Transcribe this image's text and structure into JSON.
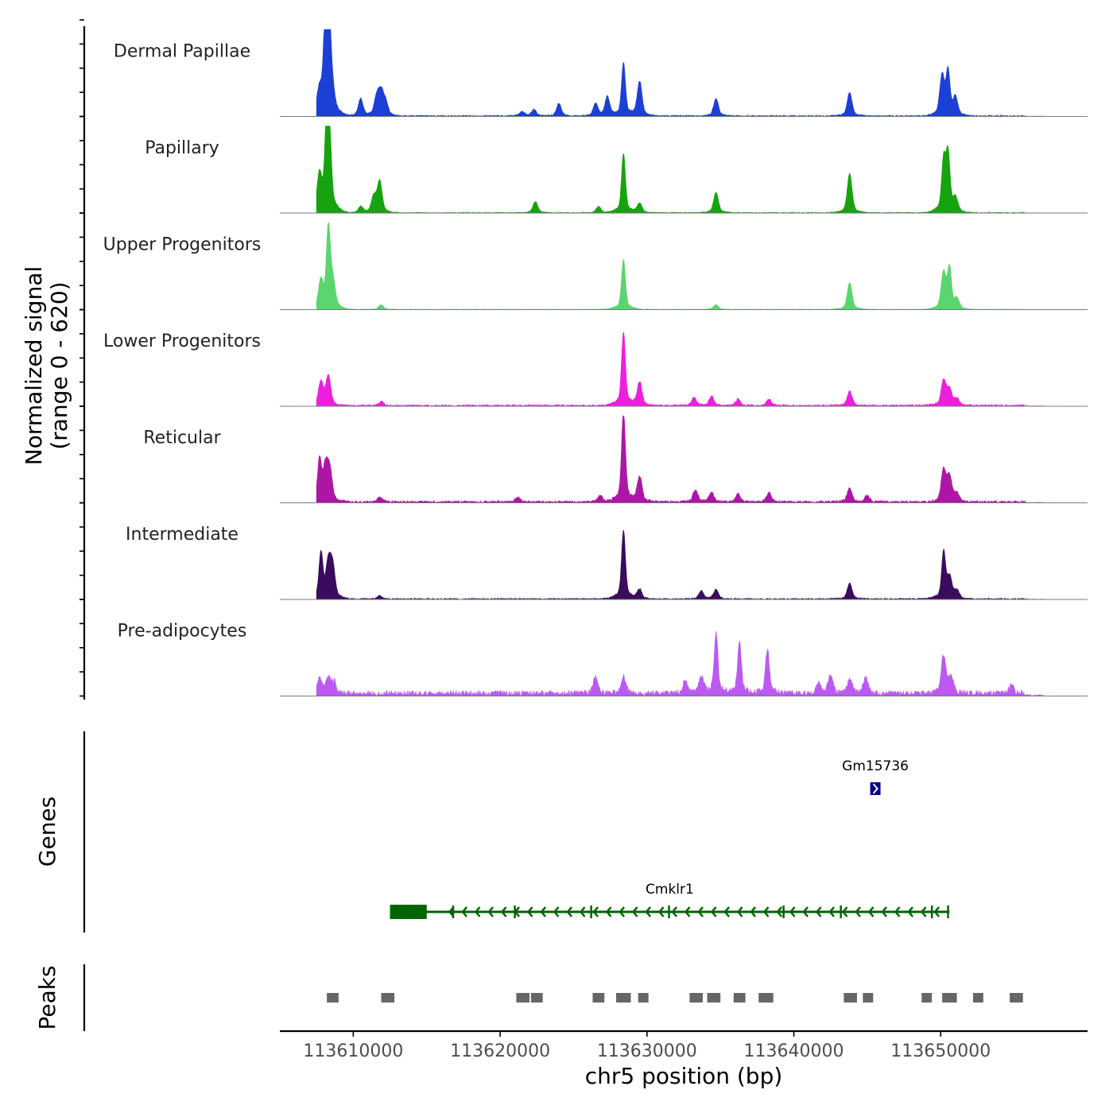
{
  "chart_data": {
    "type": "area",
    "title": "",
    "chromosome": "chr5",
    "xlabel": "chr5 position (bp)",
    "ylabel": "Normalized signal",
    "ylabel_range": "(range 0 - 620)",
    "ylim": [
      0,
      620
    ],
    "xlim": [
      113605000,
      113660000
    ],
    "x_ticks": [
      113610000,
      113620000,
      113630000,
      113640000,
      113650000
    ],
    "x_tick_labels": [
      "113610000",
      "113620000",
      "113630000",
      "113640000",
      "113650000"
    ],
    "tracks": [
      {
        "name": "Dermal Papillae",
        "color": "#1c3fd6",
        "peaks": [
          [
            113607700,
            130
          ],
          [
            113608100,
            550
          ],
          [
            113608300,
            600
          ],
          [
            113608500,
            200
          ],
          [
            113610500,
            110
          ],
          [
            113611600,
            120
          ],
          [
            113611900,
            140
          ],
          [
            113612200,
            80
          ],
          [
            113621500,
            30
          ],
          [
            113622300,
            40
          ],
          [
            113624000,
            80
          ],
          [
            113626500,
            80
          ],
          [
            113627300,
            120
          ],
          [
            113628400,
            340
          ],
          [
            113629500,
            220
          ],
          [
            113634700,
            110
          ],
          [
            113643800,
            150
          ],
          [
            113650100,
            250
          ],
          [
            113650500,
            280
          ],
          [
            113651000,
            110
          ]
        ],
        "baseline": 6
      },
      {
        "name": "Papillary",
        "color": "#17a30f",
        "peaks": [
          [
            113607700,
            220
          ],
          [
            113608200,
            620
          ],
          [
            113608400,
            380
          ],
          [
            113610500,
            40
          ],
          [
            113611400,
            100
          ],
          [
            113611800,
            200
          ],
          [
            113622400,
            70
          ],
          [
            113626700,
            40
          ],
          [
            113628400,
            380
          ],
          [
            113629500,
            60
          ],
          [
            113634700,
            130
          ],
          [
            113643800,
            250
          ],
          [
            113650200,
            330
          ],
          [
            113650500,
            370
          ],
          [
            113651000,
            80
          ]
        ],
        "baseline": 4
      },
      {
        "name": "Upper Progenitors",
        "color": "#5ad670",
        "peaks": [
          [
            113607800,
            170
          ],
          [
            113608300,
            510
          ],
          [
            113608600,
            170
          ],
          [
            113611900,
            30
          ],
          [
            113628400,
            320
          ],
          [
            113634700,
            30
          ],
          [
            113643800,
            170
          ],
          [
            113650200,
            230
          ],
          [
            113650600,
            260
          ],
          [
            113651100,
            60
          ]
        ],
        "baseline": 3
      },
      {
        "name": "Lower Progenitors",
        "color": "#ee1ee0",
        "peaks": [
          [
            113607800,
            150
          ],
          [
            113608300,
            190
          ],
          [
            113611900,
            25
          ],
          [
            113628400,
            470
          ],
          [
            113629500,
            150
          ],
          [
            113633200,
            50
          ],
          [
            113634400,
            60
          ],
          [
            113636200,
            40
          ],
          [
            113638300,
            40
          ],
          [
            113643800,
            90
          ],
          [
            113650200,
            160
          ],
          [
            113650600,
            100
          ],
          [
            113651100,
            40
          ]
        ],
        "baseline": 8
      },
      {
        "name": "Reticular",
        "color": "#ad16a4",
        "peaks": [
          [
            113607700,
            260
          ],
          [
            113608100,
            210
          ],
          [
            113608400,
            190
          ],
          [
            113611800,
            30
          ],
          [
            113621200,
            30
          ],
          [
            113626800,
            40
          ],
          [
            113628400,
            580
          ],
          [
            113629500,
            160
          ],
          [
            113633300,
            80
          ],
          [
            113634400,
            60
          ],
          [
            113636200,
            50
          ],
          [
            113638300,
            60
          ],
          [
            113643800,
            90
          ],
          [
            113645000,
            40
          ],
          [
            113650200,
            200
          ],
          [
            113650600,
            160
          ],
          [
            113651100,
            50
          ]
        ],
        "baseline": 10
      },
      {
        "name": "Intermediate",
        "color": "#3b0b5e",
        "peaks": [
          [
            113607800,
            290
          ],
          [
            113608300,
            220
          ],
          [
            113608600,
            200
          ],
          [
            113611800,
            20
          ],
          [
            113628400,
            440
          ],
          [
            113629500,
            60
          ],
          [
            113633700,
            50
          ],
          [
            113634700,
            60
          ],
          [
            113643800,
            100
          ],
          [
            113650200,
            300
          ],
          [
            113650600,
            130
          ],
          [
            113651100,
            50
          ]
        ],
        "baseline": 6
      },
      {
        "name": "Pre-adipocytes",
        "color": "#bc59f2",
        "peaks": [
          [
            113607700,
            90
          ],
          [
            113608300,
            90
          ],
          [
            113608700,
            70
          ],
          [
            113626500,
            100
          ],
          [
            113628400,
            110
          ],
          [
            113632600,
            80
          ],
          [
            113633700,
            100
          ],
          [
            113634700,
            380
          ],
          [
            113636300,
            320
          ],
          [
            113638200,
            280
          ],
          [
            113641700,
            60
          ],
          [
            113642500,
            110
          ],
          [
            113643800,
            90
          ],
          [
            113644900,
            100
          ],
          [
            113650200,
            240
          ],
          [
            113650700,
            100
          ],
          [
            113654800,
            50
          ]
        ],
        "baseline": 25
      }
    ],
    "genes_panel_label": "Genes",
    "genes": [
      {
        "name": "Gm15736",
        "start": 113645200,
        "end": 113645900,
        "strand": "+",
        "color": "#00008b"
      },
      {
        "name": "Cmklr1",
        "start": 113612500,
        "end": 113650600,
        "strand": "-",
        "color": "#006400",
        "utr_start": 113612500,
        "utr_end": 113615000,
        "exons": [
          113616800,
          113621000,
          113626200,
          113631500,
          113639300,
          113643200,
          113649400,
          113650500
        ]
      }
    ],
    "peaks_panel_label": "Peaks",
    "peak_color": "#666666",
    "peak_regions": [
      [
        113608200,
        113609000
      ],
      [
        113611900,
        113612800
      ],
      [
        113621100,
        113622000
      ],
      [
        113622100,
        113622900
      ],
      [
        113626300,
        113627100
      ],
      [
        113627900,
        113628900
      ],
      [
        113629400,
        113630100
      ],
      [
        113632900,
        113633800
      ],
      [
        113634100,
        113635000
      ],
      [
        113635900,
        113636700
      ],
      [
        113637600,
        113638600
      ],
      [
        113643400,
        113644300
      ],
      [
        113644700,
        113645400
      ],
      [
        113648700,
        113649400
      ],
      [
        113650100,
        113651100
      ],
      [
        113652200,
        113652900
      ],
      [
        113654700,
        113655600
      ]
    ]
  }
}
